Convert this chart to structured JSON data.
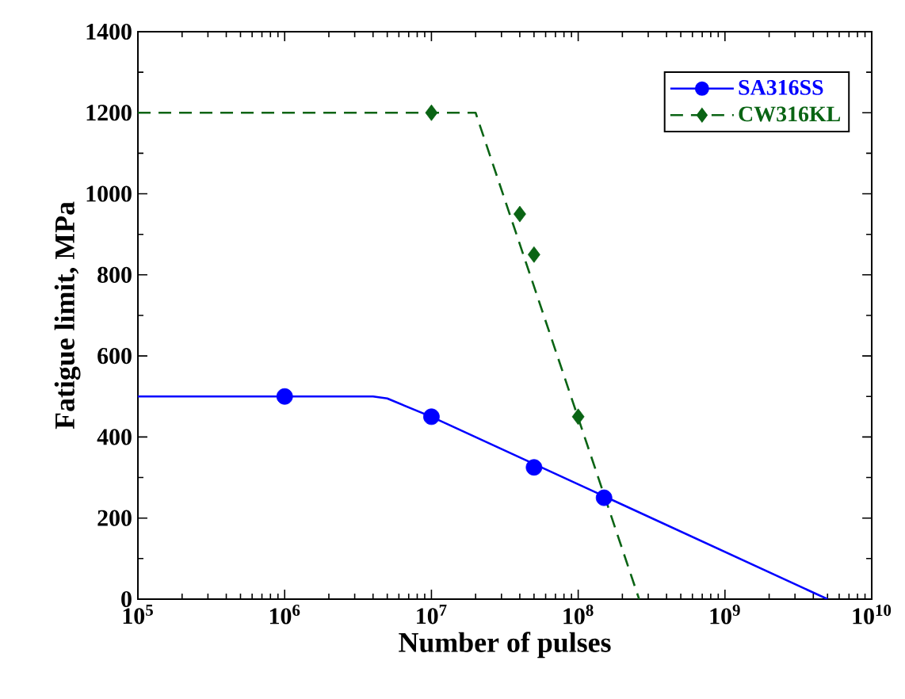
{
  "chart_data": {
    "type": "line",
    "xlabel": "Number of pulses",
    "ylabel": "Fatigue limit, MPa",
    "log": "x",
    "xlim": [
      100000,
      10000000000
    ],
    "ylim": [
      0,
      1400
    ],
    "xticks": [
      {
        "value": 100000,
        "label": "10$^{5}$"
      },
      {
        "value": 1000000,
        "label": "10$^{6}$"
      },
      {
        "value": 10000000,
        "label": "10$^{7}$"
      },
      {
        "value": 100000000,
        "label": "10$^{8}$"
      },
      {
        "value": 1000000000,
        "label": "10$^{9}$"
      },
      {
        "value": 10000000000,
        "label": "10$^{10}$"
      }
    ],
    "yticks": [
      0,
      200,
      400,
      600,
      800,
      1000,
      1200,
      1400
    ],
    "legend": "top right",
    "series": [
      {
        "name": "SA316SS",
        "type": "scatter",
        "marker": "circle",
        "color": "#0000ff",
        "x": [
          1000000,
          10000000,
          50000000,
          150000000
        ],
        "values": [
          500,
          450,
          325,
          250
        ]
      },
      {
        "line_style": "solid",
        "color": "#0000ff",
        "x": [
          100000,
          4000000,
          5000000,
          10000000,
          5000000000
        ],
        "values": [
          500,
          500,
          495,
          450,
          0
        ]
      },
      {
        "name": "CW316KL",
        "type": "scatter",
        "marker": "diamond",
        "color": "#0a6414",
        "x": [
          10000000,
          40000000,
          50000000,
          100000000
        ],
        "values": [
          1200,
          950,
          850,
          450
        ]
      },
      {
        "line_style": "dashed",
        "color": "#0a6414",
        "x": [
          100000,
          20000000,
          260000000
        ],
        "values": [
          1200,
          1200,
          0
        ]
      }
    ]
  }
}
